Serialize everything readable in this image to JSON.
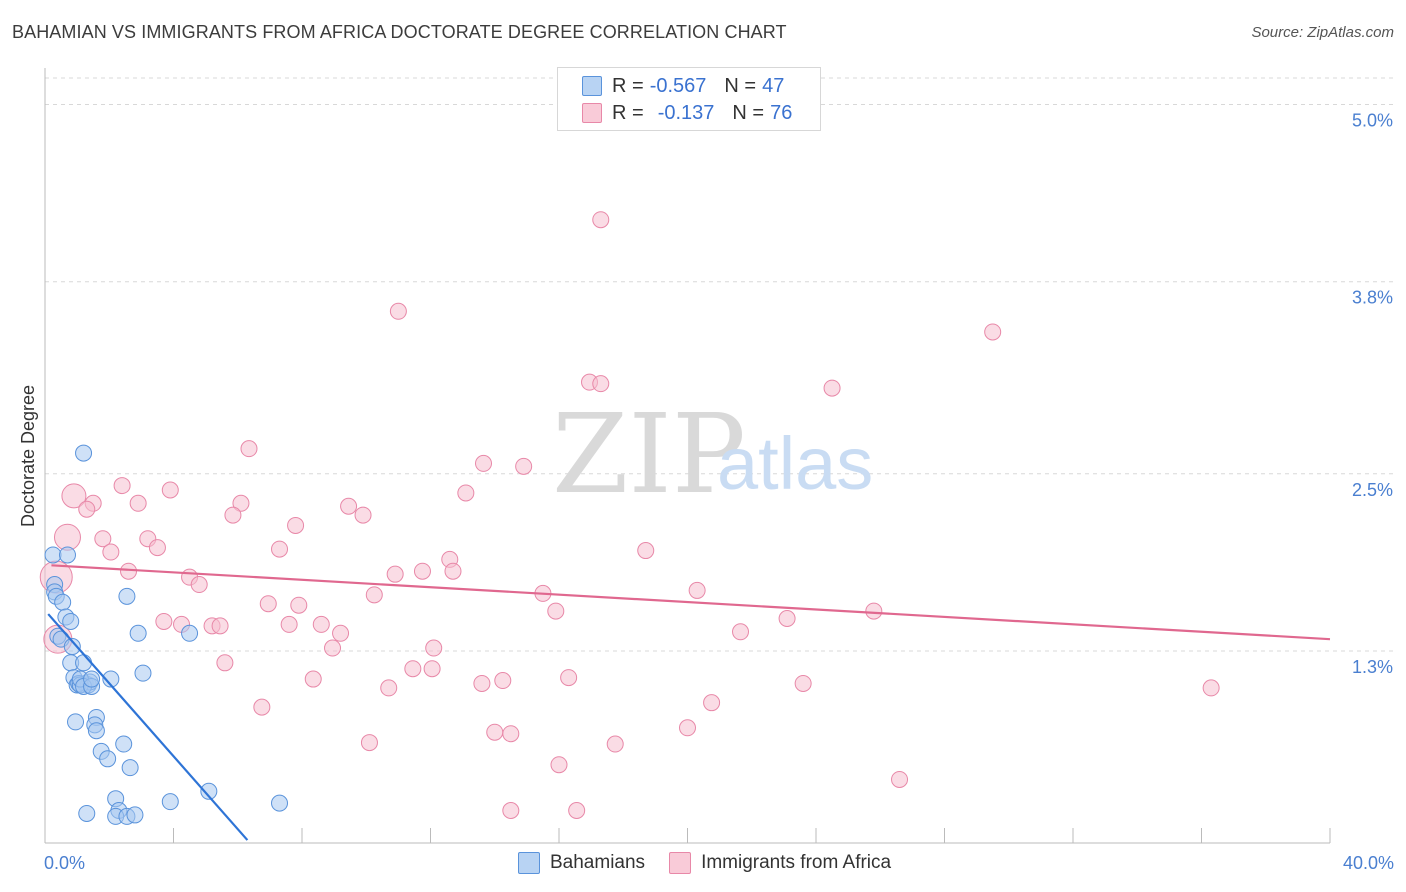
{
  "title": "BAHAMIAN VS IMMIGRANTS FROM AFRICA DOCTORATE DEGREE CORRELATION CHART",
  "source": "Source: ZipAtlas.com",
  "watermark": {
    "zip": "ZIP",
    "atlas": "atlas"
  },
  "legend": {
    "series1": {
      "r_label": "R =",
      "r_value": "-0.567",
      "n_label": "N =",
      "n_value": "47"
    },
    "series2": {
      "r_label": "R =",
      "r_value": "-0.137",
      "n_label": "N =",
      "n_value": "76"
    }
  },
  "colors": {
    "blue_fill": "#a8c8f0",
    "blue_stroke": "#5a93db",
    "blue_line": "#2e74d6",
    "pink_fill": "#f6c0d0",
    "pink_stroke": "#e888a8",
    "pink_line": "#e0688f",
    "grid": "#d8d8d8",
    "tick_text": "#4a7fd0"
  },
  "chart_data": {
    "type": "scatter",
    "title": "BAHAMIAN VS IMMIGRANTS FROM AFRICA DOCTORATE DEGREE CORRELATION CHART",
    "xlabel": "",
    "ylabel": "Doctorate Degree",
    "xlim": [
      0,
      40
    ],
    "ylim": [
      0,
      5.2
    ],
    "x_tick_labels": {
      "left": "0.0%",
      "right": "40.0%"
    },
    "y_ticks": [
      {
        "value": 1.3,
        "label": "1.3%"
      },
      {
        "value": 2.5,
        "label": "2.5%"
      },
      {
        "value": 3.8,
        "label": "3.8%"
      },
      {
        "value": 5.0,
        "label": "5.0%"
      }
    ],
    "series": [
      {
        "name": "Bahamians",
        "r": -0.567,
        "n": 47,
        "points": [
          [
            1.2,
            2.64
          ],
          [
            0.25,
            1.95
          ],
          [
            0.7,
            1.95
          ],
          [
            0.3,
            1.75
          ],
          [
            0.3,
            1.7
          ],
          [
            0.35,
            1.67
          ],
          [
            0.55,
            1.63
          ],
          [
            2.55,
            1.67
          ],
          [
            0.65,
            1.53
          ],
          [
            0.8,
            1.5
          ],
          [
            0.4,
            1.4
          ],
          [
            0.5,
            1.38
          ],
          [
            0.85,
            1.33
          ],
          [
            2.9,
            1.42
          ],
          [
            4.5,
            1.42
          ],
          [
            0.8,
            1.22
          ],
          [
            1.2,
            1.22
          ],
          [
            0.9,
            1.12
          ],
          [
            1.0,
            1.07
          ],
          [
            1.25,
            1.08
          ],
          [
            1.35,
            1.07
          ],
          [
            1.4,
            1.09
          ],
          [
            1.05,
            1.08
          ],
          [
            1.1,
            1.07
          ],
          [
            1.1,
            1.11
          ],
          [
            1.2,
            1.06
          ],
          [
            1.45,
            1.06
          ],
          [
            1.45,
            1.11
          ],
          [
            2.05,
            1.11
          ],
          [
            3.05,
            1.15
          ],
          [
            1.6,
            0.85
          ],
          [
            0.95,
            0.82
          ],
          [
            1.55,
            0.8
          ],
          [
            1.6,
            0.76
          ],
          [
            2.45,
            0.67
          ],
          [
            1.75,
            0.62
          ],
          [
            1.95,
            0.57
          ],
          [
            2.65,
            0.51
          ],
          [
            5.1,
            0.35
          ],
          [
            3.9,
            0.28
          ],
          [
            7.3,
            0.27
          ],
          [
            2.2,
            0.3
          ],
          [
            2.3,
            0.22
          ],
          [
            1.3,
            0.2
          ],
          [
            2.2,
            0.18
          ],
          [
            2.55,
            0.18
          ],
          [
            2.8,
            0.19
          ]
        ],
        "trend": {
          "x": [
            0.1,
            6.3
          ],
          "y": [
            1.55,
            0.02
          ]
        }
      },
      {
        "name": "Immigrants from Africa",
        "r": -0.137,
        "n": 76,
        "points": [
          [
            17.3,
            4.22
          ],
          [
            11.0,
            3.6
          ],
          [
            29.5,
            3.46
          ],
          [
            16.95,
            3.12
          ],
          [
            17.3,
            3.11
          ],
          [
            24.5,
            3.08
          ],
          [
            6.35,
            2.67
          ],
          [
            13.65,
            2.57
          ],
          [
            14.9,
            2.55
          ],
          [
            2.4,
            2.42
          ],
          [
            3.9,
            2.39
          ],
          [
            13.1,
            2.37
          ],
          [
            0.9,
            2.35
          ],
          [
            1.5,
            2.3
          ],
          [
            2.9,
            2.3
          ],
          [
            6.1,
            2.3
          ],
          [
            9.45,
            2.28
          ],
          [
            1.3,
            2.26
          ],
          [
            5.85,
            2.22
          ],
          [
            9.9,
            2.22
          ],
          [
            7.8,
            2.15
          ],
          [
            0.7,
            2.07
          ],
          [
            1.8,
            2.06
          ],
          [
            3.2,
            2.06
          ],
          [
            3.5,
            2.0
          ],
          [
            2.05,
            1.97
          ],
          [
            7.3,
            1.99
          ],
          [
            18.7,
            1.98
          ],
          [
            12.6,
            1.92
          ],
          [
            12.7,
            1.84
          ],
          [
            10.9,
            1.82
          ],
          [
            11.75,
            1.84
          ],
          [
            0.35,
            1.8
          ],
          [
            4.5,
            1.8
          ],
          [
            4.8,
            1.75
          ],
          [
            2.6,
            1.84
          ],
          [
            20.3,
            1.71
          ],
          [
            15.5,
            1.69
          ],
          [
            10.25,
            1.68
          ],
          [
            7.9,
            1.61
          ],
          [
            6.95,
            1.62
          ],
          [
            15.9,
            1.57
          ],
          [
            25.8,
            1.57
          ],
          [
            3.7,
            1.5
          ],
          [
            4.25,
            1.48
          ],
          [
            5.2,
            1.47
          ],
          [
            5.45,
            1.47
          ],
          [
            7.6,
            1.48
          ],
          [
            8.6,
            1.48
          ],
          [
            23.1,
            1.52
          ],
          [
            9.2,
            1.42
          ],
          [
            21.65,
            1.43
          ],
          [
            0.4,
            1.38
          ],
          [
            8.95,
            1.32
          ],
          [
            12.1,
            1.32
          ],
          [
            5.6,
            1.22
          ],
          [
            11.45,
            1.18
          ],
          [
            12.05,
            1.18
          ],
          [
            8.35,
            1.11
          ],
          [
            13.6,
            1.08
          ],
          [
            14.25,
            1.1
          ],
          [
            16.3,
            1.12
          ],
          [
            23.6,
            1.08
          ],
          [
            10.7,
            1.05
          ],
          [
            36.3,
            1.05
          ],
          [
            20.75,
            0.95
          ],
          [
            6.75,
            0.92
          ],
          [
            20.0,
            0.78
          ],
          [
            14.0,
            0.75
          ],
          [
            14.5,
            0.74
          ],
          [
            10.1,
            0.68
          ],
          [
            17.75,
            0.67
          ],
          [
            16.0,
            0.53
          ],
          [
            26.6,
            0.43
          ],
          [
            14.5,
            0.22
          ],
          [
            16.55,
            0.22
          ]
        ],
        "trend": {
          "x": [
            0.2,
            40.0
          ],
          "y": [
            1.88,
            1.38
          ]
        }
      }
    ]
  }
}
